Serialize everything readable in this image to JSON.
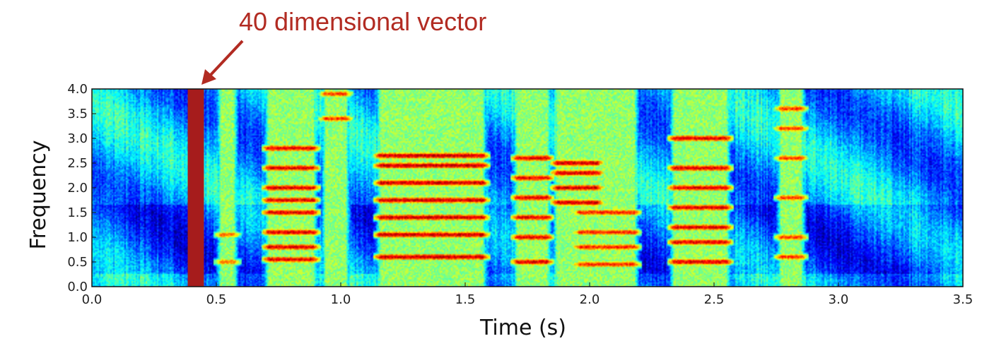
{
  "annotation": {
    "text": "40 dimensional vector",
    "color": "#b22b22"
  },
  "chart_data": {
    "type": "heatmap",
    "title": "",
    "xlabel": "Time (s)",
    "ylabel": "Frequency",
    "xlim": [
      0.0,
      3.5
    ],
    "ylim": [
      0.0,
      4.0
    ],
    "xticks": [
      "0.0",
      "0.5",
      "1.0",
      "1.5",
      "2.0",
      "2.5",
      "3.0",
      "3.5"
    ],
    "yticks": [
      "0.0",
      "0.5",
      "1.0",
      "1.5",
      "2.0",
      "2.5",
      "3.0",
      "3.5",
      "4.0"
    ],
    "xtick_values": [
      0.0,
      0.5,
      1.0,
      1.5,
      2.0,
      2.5,
      3.0,
      3.5
    ],
    "ytick_values": [
      0.0,
      0.5,
      1.0,
      1.5,
      2.0,
      2.5,
      3.0,
      3.5,
      4.0
    ],
    "colormap": "jet",
    "highlight_frame": {
      "x_start": 0.385,
      "x_end": 0.45,
      "color": "#a61c1c"
    },
    "voiced_segments": [
      {
        "start": 0.52,
        "end": 0.57,
        "harmonics": [
          0.5,
          1.05
        ],
        "strength": 0.55
      },
      {
        "start": 0.71,
        "end": 0.89,
        "harmonics": [
          0.55,
          0.8,
          1.1,
          1.5,
          1.75,
          2.0,
          2.4,
          2.8
        ],
        "strength": 0.9
      },
      {
        "start": 0.94,
        "end": 1.02,
        "harmonics": [
          3.4,
          3.9
        ],
        "strength": 0.7
      },
      {
        "start": 1.16,
        "end": 1.57,
        "harmonics": [
          0.6,
          1.05,
          1.4,
          1.75,
          2.1,
          2.45,
          2.65
        ],
        "strength": 0.95
      },
      {
        "start": 1.71,
        "end": 1.83,
        "harmonics": [
          0.5,
          1.0,
          1.4,
          1.8,
          2.2,
          2.6
        ],
        "strength": 0.9
      },
      {
        "start": 1.87,
        "end": 2.03,
        "harmonics": [
          1.7,
          2.0,
          2.3,
          2.5
        ],
        "strength": 0.95
      },
      {
        "start": 1.96,
        "end": 2.18,
        "harmonics": [
          0.45,
          0.8,
          1.1,
          1.5
        ],
        "strength": 0.75
      },
      {
        "start": 2.34,
        "end": 2.55,
        "harmonics": [
          0.5,
          0.9,
          1.2,
          1.6,
          2.0,
          2.4,
          3.0
        ],
        "strength": 0.9
      },
      {
        "start": 2.77,
        "end": 2.85,
        "harmonics": [
          0.6,
          1.0,
          1.8,
          2.6,
          3.2,
          3.6
        ],
        "strength": 0.7
      }
    ]
  }
}
